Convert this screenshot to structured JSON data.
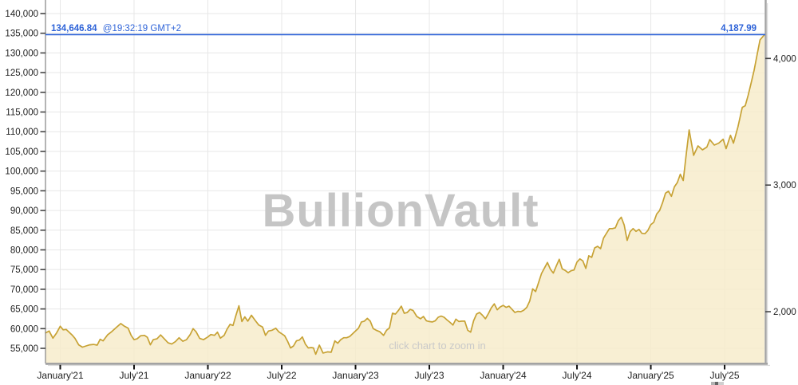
{
  "chart_data": {
    "type": "area",
    "watermark": "BullionVault",
    "zoom_hint": "click chart to zoom in",
    "annotation": {
      "price_kg_label": "134,646.84",
      "time_label": "@19:32:19 GMT+2",
      "price_oz_label": "4,187.99",
      "value_kg": 134646.84
    },
    "left_axis": {
      "min": 55000,
      "max": 140000,
      "step": 5000
    },
    "right_axis": {
      "ticks_oz": [
        2000,
        3000,
        4000
      ],
      "oz_per_kg": 32.1507
    },
    "x_axis": {
      "ticks": [
        {
          "t": 2021.0,
          "label": "January'21"
        },
        {
          "t": 2021.5,
          "label": "July'21"
        },
        {
          "t": 2022.0,
          "label": "January'22"
        },
        {
          "t": 2022.5,
          "label": "July'22"
        },
        {
          "t": 2023.0,
          "label": "January'23"
        },
        {
          "t": 2023.5,
          "label": "July'23"
        },
        {
          "t": 2024.0,
          "label": "January'24"
        },
        {
          "t": 2024.5,
          "label": "July'24"
        },
        {
          "t": 2025.0,
          "label": "January'25"
        },
        {
          "t": 2025.5,
          "label": "July'25"
        }
      ]
    },
    "layout_hints": {
      "xlim": [
        2020.9,
        2025.77
      ],
      "ylim_kg": [
        51155,
        142430
      ],
      "grid": true,
      "legend": "none"
    },
    "series_kg": [
      [
        2020.9,
        58900
      ],
      [
        2020.925,
        59400
      ],
      [
        2020.95,
        57600
      ],
      [
        2020.975,
        58900
      ],
      [
        2021.0,
        60600
      ],
      [
        2021.02,
        59700
      ],
      [
        2021.04,
        59800
      ],
      [
        2021.06,
        59100
      ],
      [
        2021.08,
        58400
      ],
      [
        2021.1,
        57500
      ],
      [
        2021.125,
        55900
      ],
      [
        2021.15,
        55300
      ],
      [
        2021.175,
        55600
      ],
      [
        2021.2,
        55900
      ],
      [
        2021.225,
        56000
      ],
      [
        2021.25,
        55800
      ],
      [
        2021.27,
        57300
      ],
      [
        2021.29,
        56900
      ],
      [
        2021.32,
        58400
      ],
      [
        2021.35,
        59300
      ],
      [
        2021.38,
        60300
      ],
      [
        2021.41,
        61300
      ],
      [
        2021.435,
        60600
      ],
      [
        2021.46,
        60100
      ],
      [
        2021.48,
        58300
      ],
      [
        2021.5,
        57200
      ],
      [
        2021.52,
        57400
      ],
      [
        2021.545,
        58200
      ],
      [
        2021.57,
        58300
      ],
      [
        2021.59,
        57800
      ],
      [
        2021.61,
        55900
      ],
      [
        2021.63,
        57200
      ],
      [
        2021.655,
        57400
      ],
      [
        2021.68,
        58400
      ],
      [
        2021.705,
        57400
      ],
      [
        2021.73,
        56400
      ],
      [
        2021.755,
        56100
      ],
      [
        2021.78,
        56700
      ],
      [
        2021.805,
        57700
      ],
      [
        2021.83,
        56800
      ],
      [
        2021.855,
        57200
      ],
      [
        2021.88,
        58500
      ],
      [
        2021.9,
        60000
      ],
      [
        2021.92,
        59200
      ],
      [
        2021.945,
        57500
      ],
      [
        2021.97,
        57200
      ],
      [
        2022.0,
        57900
      ],
      [
        2022.02,
        58500
      ],
      [
        2022.045,
        58300
      ],
      [
        2022.065,
        59100
      ],
      [
        2022.085,
        57600
      ],
      [
        2022.11,
        58300
      ],
      [
        2022.13,
        59900
      ],
      [
        2022.15,
        61100
      ],
      [
        2022.17,
        60800
      ],
      [
        2022.19,
        63400
      ],
      [
        2022.21,
        65800
      ],
      [
        2022.23,
        61800
      ],
      [
        2022.25,
        63000
      ],
      [
        2022.27,
        61900
      ],
      [
        2022.295,
        63400
      ],
      [
        2022.32,
        62100
      ],
      [
        2022.345,
        60900
      ],
      [
        2022.37,
        60400
      ],
      [
        2022.39,
        58300
      ],
      [
        2022.41,
        59400
      ],
      [
        2022.435,
        59600
      ],
      [
        2022.46,
        60100
      ],
      [
        2022.48,
        59200
      ],
      [
        2022.5,
        58700
      ],
      [
        2022.52,
        58200
      ],
      [
        2022.54,
        56800
      ],
      [
        2022.56,
        55100
      ],
      [
        2022.58,
        55600
      ],
      [
        2022.6,
        56900
      ],
      [
        2022.62,
        57100
      ],
      [
        2022.64,
        57900
      ],
      [
        2022.66,
        56100
      ],
      [
        2022.68,
        55100
      ],
      [
        2022.7,
        55200
      ],
      [
        2022.715,
        55100
      ],
      [
        2022.73,
        53500
      ],
      [
        2022.755,
        55800
      ],
      [
        2022.78,
        53800
      ],
      [
        2022.81,
        54100
      ],
      [
        2022.835,
        54000
      ],
      [
        2022.86,
        56900
      ],
      [
        2022.88,
        56300
      ],
      [
        2022.9,
        57200
      ],
      [
        2022.92,
        57700
      ],
      [
        2022.94,
        57700
      ],
      [
        2022.96,
        58000
      ],
      [
        2022.98,
        58700
      ],
      [
        2023.0,
        59400
      ],
      [
        2023.02,
        60100
      ],
      [
        2023.04,
        61700
      ],
      [
        2023.06,
        61900
      ],
      [
        2023.08,
        62600
      ],
      [
        2023.1,
        61900
      ],
      [
        2023.12,
        60000
      ],
      [
        2023.14,
        59600
      ],
      [
        2023.165,
        59200
      ],
      [
        2023.19,
        58300
      ],
      [
        2023.21,
        59600
      ],
      [
        2023.23,
        60200
      ],
      [
        2023.25,
        63900
      ],
      [
        2023.27,
        63700
      ],
      [
        2023.29,
        64600
      ],
      [
        2023.31,
        65700
      ],
      [
        2023.33,
        63900
      ],
      [
        2023.35,
        64100
      ],
      [
        2023.37,
        64900
      ],
      [
        2023.39,
        64600
      ],
      [
        2023.415,
        63100
      ],
      [
        2023.44,
        62500
      ],
      [
        2023.46,
        63100
      ],
      [
        2023.48,
        62000
      ],
      [
        2023.5,
        61800
      ],
      [
        2023.52,
        61700
      ],
      [
        2023.54,
        62000
      ],
      [
        2023.56,
        62900
      ],
      [
        2023.58,
        63200
      ],
      [
        2023.6,
        62900
      ],
      [
        2023.62,
        62200
      ],
      [
        2023.64,
        61600
      ],
      [
        2023.66,
        60900
      ],
      [
        2023.68,
        62400
      ],
      [
        2023.7,
        61800
      ],
      [
        2023.72,
        61900
      ],
      [
        2023.74,
        61900
      ],
      [
        2023.76,
        59600
      ],
      [
        2023.78,
        59100
      ],
      [
        2023.8,
        62000
      ],
      [
        2023.82,
        63700
      ],
      [
        2023.84,
        64100
      ],
      [
        2023.86,
        63400
      ],
      [
        2023.88,
        62500
      ],
      [
        2023.9,
        63800
      ],
      [
        2023.92,
        65300
      ],
      [
        2023.94,
        66300
      ],
      [
        2023.96,
        64800
      ],
      [
        2023.98,
        65500
      ],
      [
        2024.0,
        65900
      ],
      [
        2024.02,
        65400
      ],
      [
        2024.04,
        65700
      ],
      [
        2024.06,
        64900
      ],
      [
        2024.08,
        64100
      ],
      [
        2024.1,
        64400
      ],
      [
        2024.12,
        64300
      ],
      [
        2024.14,
        64700
      ],
      [
        2024.16,
        65400
      ],
      [
        2024.18,
        67000
      ],
      [
        2024.2,
        70100
      ],
      [
        2024.22,
        69400
      ],
      [
        2024.24,
        71700
      ],
      [
        2024.26,
        74000
      ],
      [
        2024.28,
        75400
      ],
      [
        2024.3,
        76800
      ],
      [
        2024.32,
        75100
      ],
      [
        2024.34,
        74100
      ],
      [
        2024.36,
        75900
      ],
      [
        2024.38,
        77600
      ],
      [
        2024.4,
        75200
      ],
      [
        2024.42,
        74800
      ],
      [
        2024.44,
        74200
      ],
      [
        2024.46,
        74700
      ],
      [
        2024.48,
        74900
      ],
      [
        2024.5,
        76900
      ],
      [
        2024.52,
        77700
      ],
      [
        2024.54,
        77200
      ],
      [
        2024.56,
        75300
      ],
      [
        2024.58,
        78500
      ],
      [
        2024.6,
        78100
      ],
      [
        2024.62,
        80500
      ],
      [
        2024.64,
        80900
      ],
      [
        2024.66,
        80300
      ],
      [
        2024.68,
        83000
      ],
      [
        2024.7,
        84200
      ],
      [
        2024.72,
        85400
      ],
      [
        2024.74,
        85400
      ],
      [
        2024.76,
        85600
      ],
      [
        2024.78,
        87400
      ],
      [
        2024.8,
        88300
      ],
      [
        2024.82,
        86300
      ],
      [
        2024.84,
        82400
      ],
      [
        2024.86,
        84600
      ],
      [
        2024.88,
        85400
      ],
      [
        2024.9,
        84700
      ],
      [
        2024.92,
        85200
      ],
      [
        2024.94,
        84200
      ],
      [
        2024.96,
        84100
      ],
      [
        2024.98,
        84900
      ],
      [
        2025.0,
        86400
      ],
      [
        2025.02,
        87000
      ],
      [
        2025.04,
        89100
      ],
      [
        2025.06,
        90000
      ],
      [
        2025.08,
        92000
      ],
      [
        2025.1,
        94400
      ],
      [
        2025.12,
        94900
      ],
      [
        2025.14,
        93600
      ],
      [
        2025.16,
        96000
      ],
      [
        2025.18,
        97100
      ],
      [
        2025.2,
        99200
      ],
      [
        2025.22,
        97600
      ],
      [
        2025.24,
        104200
      ],
      [
        2025.26,
        110450
      ],
      [
        2025.29,
        104000
      ],
      [
        2025.32,
        106400
      ],
      [
        2025.35,
        105400
      ],
      [
        2025.38,
        106100
      ],
      [
        2025.4,
        108000
      ],
      [
        2025.43,
        106600
      ],
      [
        2025.46,
        107100
      ],
      [
        2025.49,
        108100
      ],
      [
        2025.51,
        105700
      ],
      [
        2025.54,
        109100
      ],
      [
        2025.56,
        107100
      ],
      [
        2025.59,
        111200
      ],
      [
        2025.62,
        116200
      ],
      [
        2025.64,
        116600
      ],
      [
        2025.66,
        119300
      ],
      [
        2025.68,
        122400
      ],
      [
        2025.7,
        125600
      ],
      [
        2025.72,
        129500
      ],
      [
        2025.74,
        133300
      ],
      [
        2025.77,
        134647
      ]
    ],
    "colors": {
      "line": "#c7a234",
      "fill": "#f7ecc9",
      "annotation_blue": "#2e63d8",
      "grid": "#e7e7e7",
      "axis_border": "#a3a3a3",
      "tick": "#444444",
      "label_text": "#222222",
      "watermark_gray": "#c5c5c5",
      "hint_gray": "#c9c9c9"
    }
  }
}
